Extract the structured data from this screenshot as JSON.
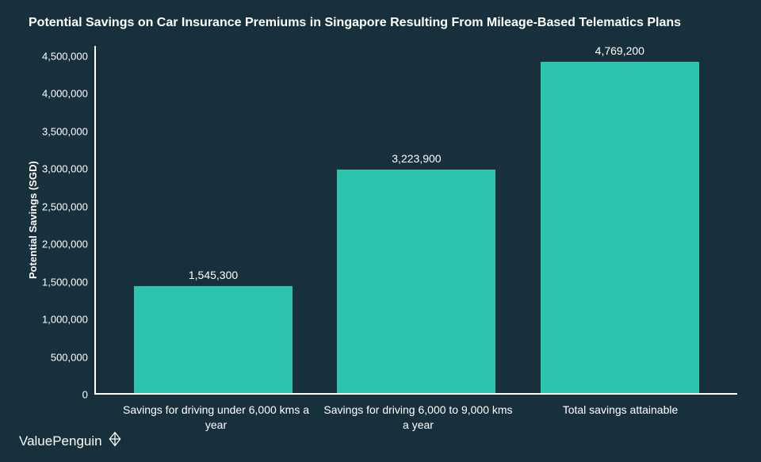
{
  "chart": {
    "type": "bar",
    "title": "Potential Savings on Car Insurance Premiums in Singapore Resulting From Mileage-Based Telematics Plans",
    "title_fontsize": 16,
    "title_fontweight": "bold",
    "background_color": "#18303b",
    "axis_color": "#ffffff",
    "text_color": "#ffffff",
    "ylabel": "Potential Savings (SGD)",
    "ylabel_fontsize": 13,
    "ylim": [
      0,
      5000000
    ],
    "ytick_step": 500000,
    "yticks": [
      "0",
      "500,000",
      "1,000,000",
      "1,500,000",
      "2,000,000",
      "2,500,000",
      "3,000,000",
      "3,500,000",
      "4,000,000",
      "4,500,000"
    ],
    "xlabel_fontsize": 14,
    "bar_width_ratio": 0.78,
    "bar_color": "#2bc4ad",
    "bar_label_fontsize": 14,
    "categories": [
      "Savings for driving under 6,000 kms a year",
      "Savings for driving 6,000 to 9,000 kms a year",
      "Total savings attainable"
    ],
    "values": [
      1545300,
      3223900,
      4769200
    ],
    "value_labels": [
      "1,545,300",
      "3,223,900",
      "4,769,200"
    ]
  },
  "brand": {
    "name": "ValuePenguin",
    "icon": "penguin-diamond-outline"
  }
}
